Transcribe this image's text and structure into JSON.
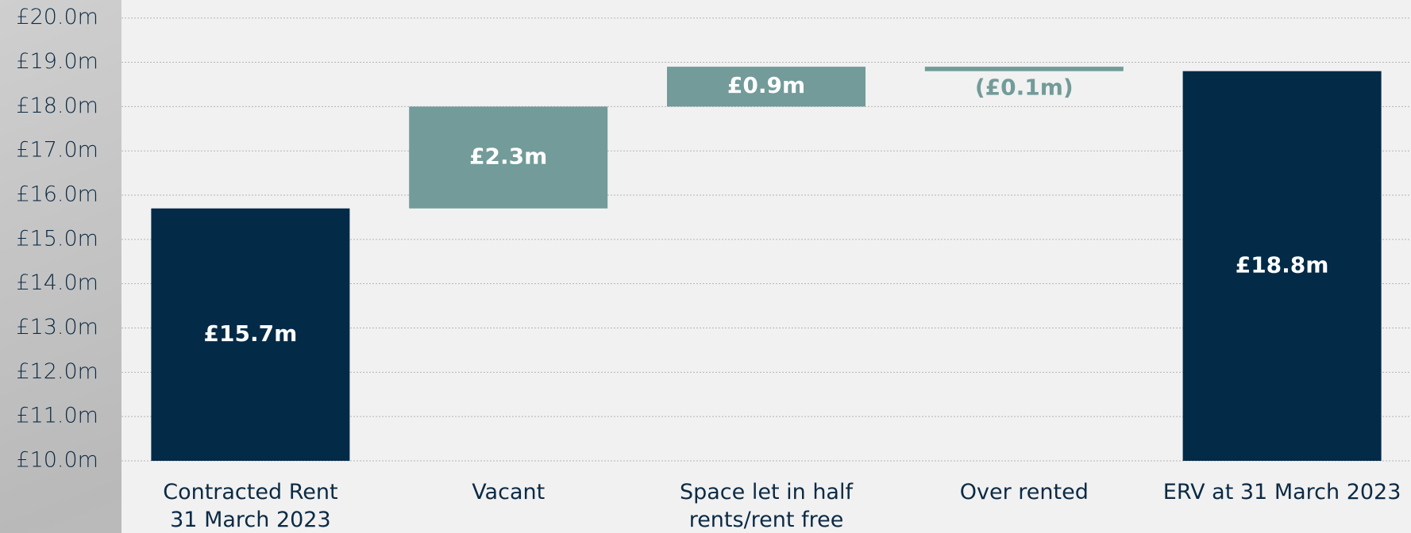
{
  "chart_data": {
    "type": "waterfall",
    "categories": [
      [
        "Contracted Rent",
        "31 March 2023"
      ],
      [
        "Vacant"
      ],
      [
        "Space let in half",
        "rents/rent free"
      ],
      [
        "Over rented"
      ],
      [
        "ERV at 31 March 2023"
      ]
    ],
    "values": [
      15.7,
      2.3,
      0.9,
      -0.1,
      18.8
    ],
    "value_labels": [
      "£15.7m",
      "£2.3m",
      "£0.9m",
      "(£0.1m)",
      "£18.8m"
    ],
    "measure": [
      "total",
      "delta",
      "delta",
      "delta",
      "total"
    ],
    "total_color": "#032a47",
    "delta_color": "#729b99",
    "ylim": [
      10,
      20
    ],
    "yticks": [
      {
        "value": 10,
        "label": "£10.0m"
      },
      {
        "value": 11,
        "label": "£11.0m"
      },
      {
        "value": 12,
        "label": "£12.0m"
      },
      {
        "value": 13,
        "label": "£13.0m"
      },
      {
        "value": 14,
        "label": "£14.0m"
      },
      {
        "value": 15,
        "label": "£15.0m"
      },
      {
        "value": 16,
        "label": "£16.0m"
      },
      {
        "value": 17,
        "label": "£17.0m"
      },
      {
        "value": 18,
        "label": "£18.0m"
      },
      {
        "value": 19,
        "label": "£19.0m"
      },
      {
        "value": 20,
        "label": "£20.0m"
      }
    ],
    "grid": true
  }
}
